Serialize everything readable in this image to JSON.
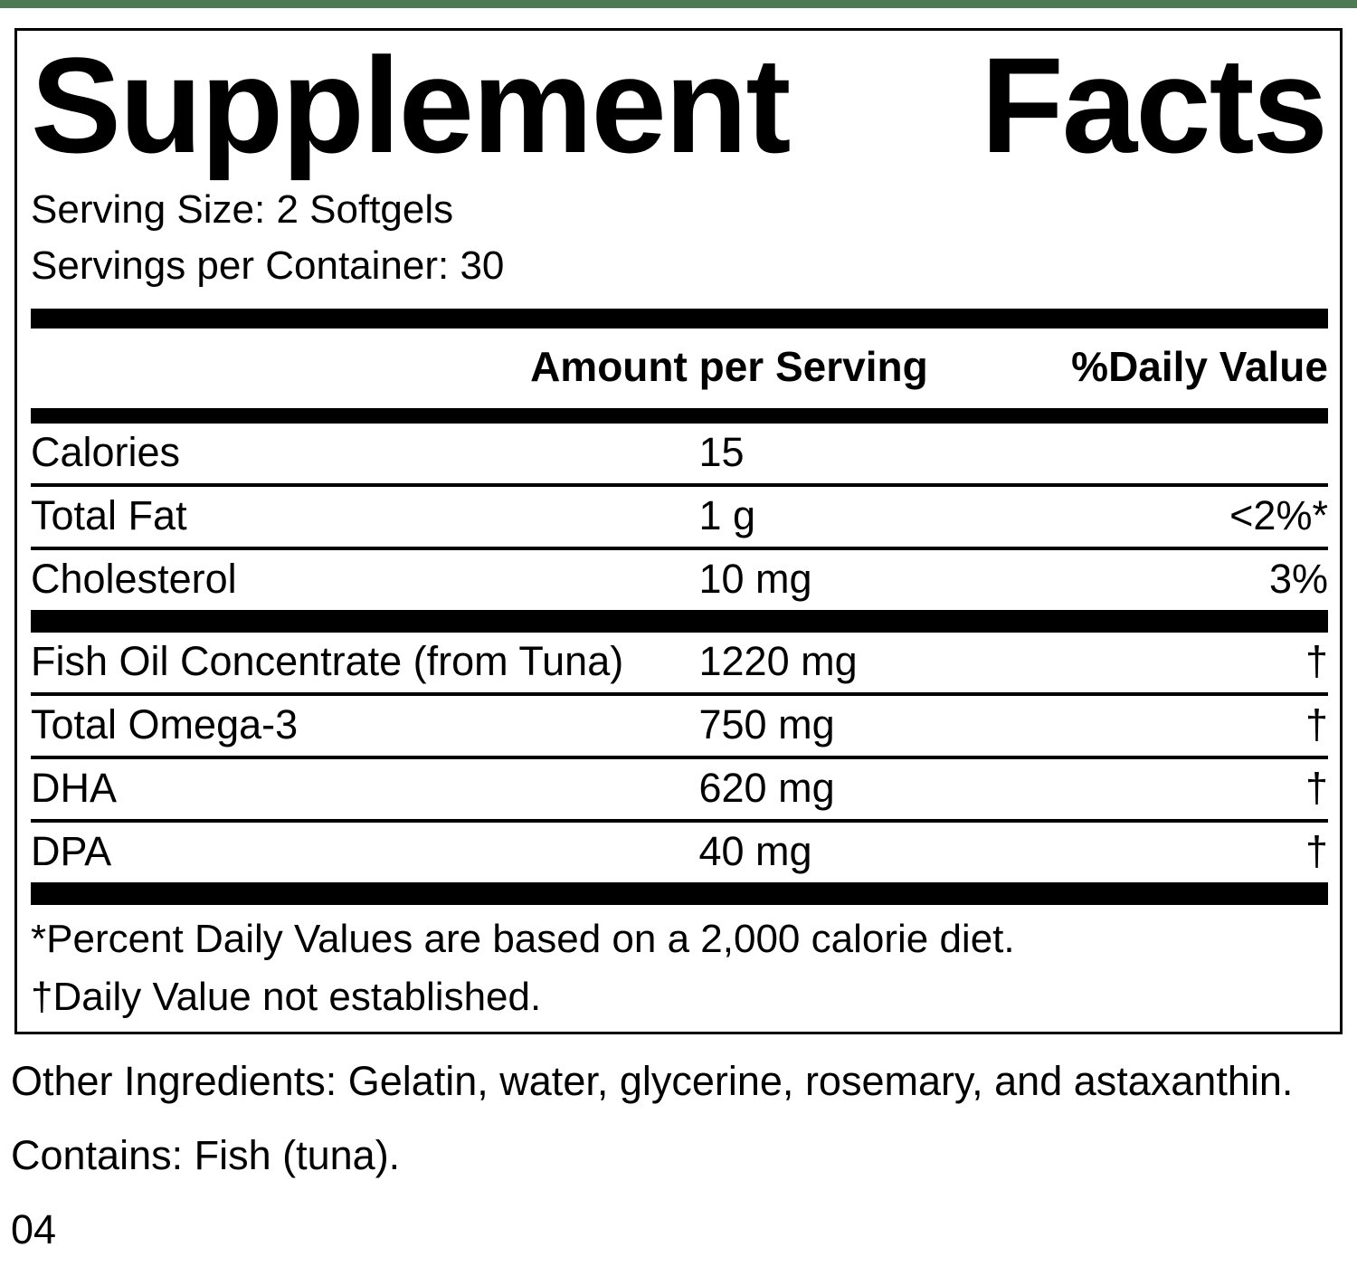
{
  "colors": {
    "accent_green": "#4d7a54",
    "text": "#000000",
    "background": "#ffffff"
  },
  "supplement_panel": {
    "title_words": [
      "Supplement",
      "Facts"
    ],
    "serving_size": "Serving Size: 2 Softgels",
    "servings_per_container": "Servings per Container: 30",
    "column_headers": {
      "amount": "Amount per Serving",
      "daily_value": "%Daily Value"
    },
    "nutrition_rows": [
      {
        "name": "Calories",
        "amount": "15",
        "daily_value": ""
      },
      {
        "name": "Total Fat",
        "amount": "1 g",
        "daily_value": "<2%*"
      },
      {
        "name": "Cholesterol",
        "amount": "10 mg",
        "daily_value": "3%"
      }
    ],
    "ingredient_rows": [
      {
        "name": "Fish Oil Concentrate (from Tuna)",
        "amount": "1220 mg",
        "daily_value": "†"
      },
      {
        "name": "Total Omega-3",
        "amount": "750 mg",
        "daily_value": "†"
      },
      {
        "name": "DHA",
        "amount": "620 mg",
        "daily_value": "†"
      },
      {
        "name": "DPA",
        "amount": "40 mg",
        "daily_value": "†"
      }
    ],
    "footnotes": [
      "*Percent Daily Values are based on a 2,000 calorie diet.",
      "†Daily Value not established."
    ]
  },
  "other_ingredients": "Other Ingredients: Gelatin, water, glycerine, rosemary, and astaxanthin.",
  "contains": "Contains: Fish (tuna).",
  "item_code": "04"
}
